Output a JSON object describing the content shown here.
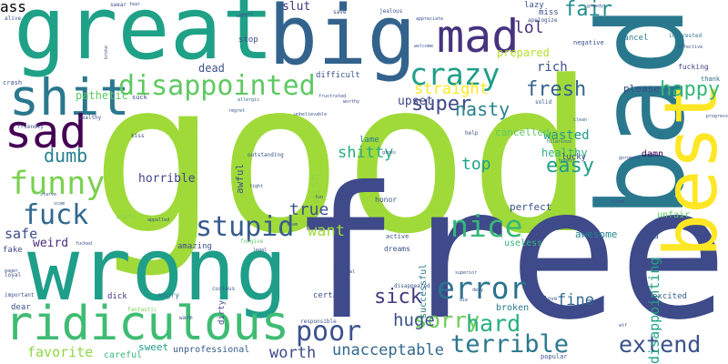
{
  "words": [
    {
      "text": "good",
      "color": "#a0da39",
      "rot": 0
    },
    {
      "text": "free",
      "color": "#3e4a89",
      "rot": 0
    },
    {
      "text": "great",
      "color": "#1fa187",
      "rot": 0
    },
    {
      "text": "wrong",
      "color": "#1f9e89",
      "rot": 0
    },
    {
      "text": "bad",
      "color": "#2a788e",
      "rot": -90
    },
    {
      "text": "big",
      "color": "#33638d",
      "rot": 0
    },
    {
      "text": "best",
      "color": "#fde725",
      "rot": -90
    },
    {
      "text": "ridiculous",
      "color": "#3fbc73",
      "rot": 0
    },
    {
      "text": "shit",
      "color": "#2a788e",
      "rot": 0
    },
    {
      "text": "sad",
      "color": "#440154",
      "rot": 0
    },
    {
      "text": "mad",
      "color": "#46337e",
      "rot": 0
    },
    {
      "text": "disappointed",
      "color": "#5ec962",
      "rot": 0
    },
    {
      "text": "funny",
      "color": "#7ad151",
      "rot": 0
    },
    {
      "text": "crazy",
      "color": "#1f9e89",
      "rot": 0
    },
    {
      "text": "stupid",
      "color": "#365c8d",
      "rot": 0
    },
    {
      "text": "fuck",
      "color": "#31688e",
      "rot": 0
    },
    {
      "text": "error",
      "color": "#2c728e",
      "rot": 0
    },
    {
      "text": "nice",
      "color": "#35b779",
      "rot": 0
    },
    {
      "text": "poor",
      "color": "#3b528b",
      "rot": 0
    },
    {
      "text": "terrible",
      "color": "#2a788e",
      "rot": 0
    },
    {
      "text": "extend",
      "color": "#3b528b",
      "rot": 0
    },
    {
      "text": "sorry",
      "color": "#6ece58",
      "rot": 0
    },
    {
      "text": "hard",
      "color": "#29af7f",
      "rot": 0
    },
    {
      "text": "happy",
      "color": "#35b779",
      "rot": 0
    },
    {
      "text": "super",
      "color": "#3e4a89",
      "rot": 0
    },
    {
      "text": "fresh",
      "color": "#33638d",
      "rot": 0
    },
    {
      "text": "easy",
      "color": "#1f9e89",
      "rot": 0
    },
    {
      "text": "dumb",
      "color": "#26828e",
      "rot": 0
    },
    {
      "text": "nasty",
      "color": "#26828e",
      "rot": 0
    },
    {
      "text": "fair",
      "color": "#228c8d",
      "rot": 0
    },
    {
      "text": "lol",
      "color": "#46337e",
      "rot": 0
    },
    {
      "text": "top",
      "color": "#1fa187",
      "rot": 0
    },
    {
      "text": "sick",
      "color": "#443983",
      "rot": 0
    },
    {
      "text": "huge",
      "color": "#3b528b",
      "rot": 0
    },
    {
      "text": "unacceptable",
      "color": "#31688e",
      "rot": 0
    },
    {
      "text": "fine",
      "color": "#31688e",
      "rot": 0
    },
    {
      "text": "straight",
      "color": "#fde725",
      "rot": 0
    },
    {
      "text": "shitty",
      "color": "#27ad81",
      "rot": 0
    },
    {
      "text": "worth",
      "color": "#3e4a89",
      "rot": 0
    },
    {
      "text": "true",
      "color": "#3b528b",
      "rot": 0
    },
    {
      "text": "want",
      "color": "#a0da39",
      "rot": 0
    },
    {
      "text": "horrible",
      "color": "#414487",
      "rot": 0
    },
    {
      "text": "favorite",
      "color": "#8fd744",
      "rot": 0
    },
    {
      "text": "safe",
      "color": "#3e4a89",
      "rot": 0
    },
    {
      "text": "weird",
      "color": "#472d7b",
      "rot": 0
    },
    {
      "text": "disappointing",
      "color": "#20a486",
      "rot": -90
    },
    {
      "text": "wish",
      "color": "#90d743",
      "rot": -90
    },
    {
      "text": "awful",
      "color": "#3b528b",
      "rot": -90
    },
    {
      "text": "successful",
      "color": "#2a788e",
      "rot": -90
    },
    {
      "text": "upset",
      "color": "#404688",
      "rot": 0
    },
    {
      "text": "wasted",
      "color": "#1e9b8a",
      "rot": 0
    },
    {
      "text": "healthy",
      "color": "#2fb47c",
      "rot": 0
    },
    {
      "text": "cancelled",
      "color": "#5ec962",
      "rot": 0
    },
    {
      "text": "prepared",
      "color": "#b5de2b",
      "rot": 0
    },
    {
      "text": "rich",
      "color": "#3b528b",
      "rot": 0
    },
    {
      "text": "please",
      "color": "#3e4a89",
      "rot": 0
    },
    {
      "text": "dead",
      "color": "#3b528b",
      "rot": 0
    },
    {
      "text": "pathetic",
      "color": "#5ec962",
      "rot": 0
    },
    {
      "text": "slut",
      "color": "#46337e",
      "rot": 0
    },
    {
      "text": "awesome",
      "color": "#26828e",
      "rot": 0
    },
    {
      "text": "perfect",
      "color": "#3b528b",
      "rot": 0
    },
    {
      "text": "unprofessional",
      "color": "#365c8d",
      "rot": 0
    },
    {
      "text": "sweet",
      "color": "#1f9e89",
      "rot": 0
    },
    {
      "text": "careful",
      "color": "#35b779",
      "rot": 0
    },
    {
      "text": "broken",
      "color": "#2a788e",
      "rot": 0
    },
    {
      "text": "lame",
      "color": "#2a788e",
      "rot": 0
    },
    {
      "text": "glad",
      "color": "#3b528b",
      "rot": 0
    },
    {
      "text": "damn",
      "color": "#440154",
      "rot": 0
    },
    {
      "text": "lucky",
      "color": "#3e4a89",
      "rot": 0
    },
    {
      "text": "unfair",
      "color": "#5ec962",
      "rot": 0
    },
    {
      "text": "excited",
      "color": "#365c8d",
      "rot": 0
    },
    {
      "text": "cancel",
      "color": "#2a788e",
      "rot": 0
    },
    {
      "text": "amazing",
      "color": "#3b528b",
      "rot": 0
    },
    {
      "text": "fake",
      "color": "#3e4a89",
      "rot": 0
    },
    {
      "text": "dirty",
      "color": "#404688",
      "rot": -90
    },
    {
      "text": "useless",
      "color": "#35b779",
      "rot": 0
    },
    {
      "text": "lazy",
      "color": "#3b528b",
      "rot": 0
    },
    {
      "text": "miss",
      "color": "#3e4a89",
      "rot": 0
    },
    {
      "text": "stop",
      "color": "#3e4a89",
      "rot": 0
    },
    {
      "text": "fucking",
      "color": "#404688",
      "rot": 0
    },
    {
      "text": "dick",
      "color": "#46337e",
      "rot": 0
    },
    {
      "text": "angry",
      "color": "#2a788e",
      "rot": 0
    },
    {
      "text": "honor",
      "color": "#3b528b",
      "rot": 0
    },
    {
      "text": "difficult",
      "color": "#3b528b",
      "rot": 0
    },
    {
      "text": "apologize",
      "color": "#3e4a89",
      "rot": 0
    },
    {
      "text": "negative",
      "color": "#3b528b",
      "rot": 0
    },
    {
      "text": "interested",
      "color": "#2c728e",
      "rot": 0
    },
    {
      "text": "fantastic",
      "color": "#7ad151",
      "rot": 0
    },
    {
      "text": "popular",
      "color": "#3b528b",
      "rot": 0
    },
    {
      "text": "crash",
      "color": "#3b528b",
      "rot": 0
    },
    {
      "text": "suck",
      "color": "#3e4a89",
      "rot": 0
    },
    {
      "text": "help",
      "color": "#3b528b",
      "rot": 0
    },
    {
      "text": "thank",
      "color": "#31688e",
      "rot": 0
    },
    {
      "text": "active",
      "color": "#3b528b",
      "rot": 0
    },
    {
      "text": "superior",
      "color": "#3b528b",
      "rot": 0
    },
    {
      "text": "criminal",
      "color": "#3e4a89",
      "rot": 0
    },
    {
      "text": "disappeared",
      "color": "#3b528b",
      "rot": 0
    },
    {
      "text": "hilarious",
      "color": "#31688e",
      "rot": 0
    },
    {
      "text": "honest",
      "color": "#2a788e",
      "rot": 0
    },
    {
      "text": "tired",
      "color": "#3e4a89",
      "rot": 0
    },
    {
      "text": "fight",
      "color": "#3b528b",
      "rot": 0
    },
    {
      "text": "regret",
      "color": "#3b528b",
      "rot": 0
    },
    {
      "text": "allergic",
      "color": "#31688e",
      "rot": 0
    },
    {
      "text": "unbelievable",
      "color": "#3b528b",
      "rot": 0
    },
    {
      "text": "frustrated",
      "color": "#3b528b",
      "rot": 0
    },
    {
      "text": "worthy",
      "color": "#3e4a89",
      "rot": 0
    },
    {
      "text": "gross",
      "color": "#3b528b",
      "rot": 0
    },
    {
      "text": "spam",
      "color": "#3b528b",
      "rot": 0
    },
    {
      "text": "fun",
      "color": "#3e4a89",
      "rot": 0
    },
    {
      "text": "legal",
      "color": "#3b528b",
      "rot": 0
    },
    {
      "text": "swear",
      "color": "#3b528b",
      "rot": 0
    },
    {
      "text": "save",
      "color": "#3e4a89",
      "rot": 0
    },
    {
      "text": "jealous",
      "color": "#3b528b",
      "rot": 0
    },
    {
      "text": "appreciate",
      "color": "#3b528b",
      "rot": 0
    },
    {
      "text": "clean",
      "color": "#31688e",
      "rot": 0
    },
    {
      "text": "greedy",
      "color": "#3b528b",
      "rot": 0
    },
    {
      "text": "welcome",
      "color": "#3b528b",
      "rot": 0
    },
    {
      "text": "alive",
      "color": "#3b528b",
      "rot": 0
    },
    {
      "text": "fear",
      "color": "#3e4a89",
      "rot": 0
    },
    {
      "text": "broke",
      "color": "#3b528b",
      "rot": -90
    },
    {
      "text": "friendly",
      "color": "#3b528b",
      "rot": 0
    },
    {
      "text": "wealthy",
      "color": "#3e4a89",
      "rot": 0
    },
    {
      "text": "scam",
      "color": "#3b528b",
      "rot": 0
    },
    {
      "text": "eager",
      "color": "#3b528b",
      "rot": 0
    },
    {
      "text": "loyal",
      "color": "#3e4a89",
      "rot": 0
    },
    {
      "text": "important",
      "color": "#3b528b",
      "rot": 0
    },
    {
      "text": "dear",
      "color": "#3b528b",
      "rot": 0
    },
    {
      "text": "kiss",
      "color": "#3b528b",
      "rot": 0
    },
    {
      "text": "warm",
      "color": "#3b528b",
      "rot": 0
    },
    {
      "text": "curious",
      "color": "#3b528b",
      "rot": 0
    },
    {
      "text": "forgive",
      "color": "#5ec962",
      "rot": 0
    },
    {
      "text": "pretty",
      "color": "#7ad151",
      "rot": 0
    },
    {
      "text": "outstanding",
      "color": "#3b528b",
      "rot": 0
    },
    {
      "text": "starve",
      "color": "#3b528b",
      "rot": 0
    },
    {
      "text": "appalled",
      "color": "#3b528b",
      "rot": 0
    },
    {
      "text": "responsible",
      "color": "#3b528b",
      "rot": 0
    },
    {
      "text": "charged",
      "color": "#3b528b",
      "rot": 0
    },
    {
      "text": "wtf",
      "color": "#3b528b",
      "rot": 0
    },
    {
      "text": "love",
      "color": "#3b528b",
      "rot": 0
    },
    {
      "text": "smart",
      "color": "#3b528b",
      "rot": 0
    },
    {
      "text": "cool",
      "color": "#3b528b",
      "rot": 0
    },
    {
      "text": "solid",
      "color": "#3b528b",
      "rot": 0
    },
    {
      "text": "deny",
      "color": "#3b528b",
      "rot": 0
    },
    {
      "text": "die",
      "color": "#3b528b",
      "rot": 0
    },
    {
      "text": "fucked",
      "color": "#3b528b",
      "rot": 0
    },
    {
      "text": "gorgeous",
      "color": "#3b528b",
      "rot": 0
    },
    {
      "text": "effective",
      "color": "#3b528b",
      "rot": 0
    },
    {
      "text": "progress",
      "color": "#3b528b",
      "rot": 0
    },
    {
      "text": "dreams",
      "color": "#3b528b",
      "rot": 0
    },
    {
      "text": "certain",
      "color": "#3b528b",
      "rot": 0
    },
    {
      "text": "ass",
      "color": "#3b528b",
      "rot": 0
    }
  ]
}
